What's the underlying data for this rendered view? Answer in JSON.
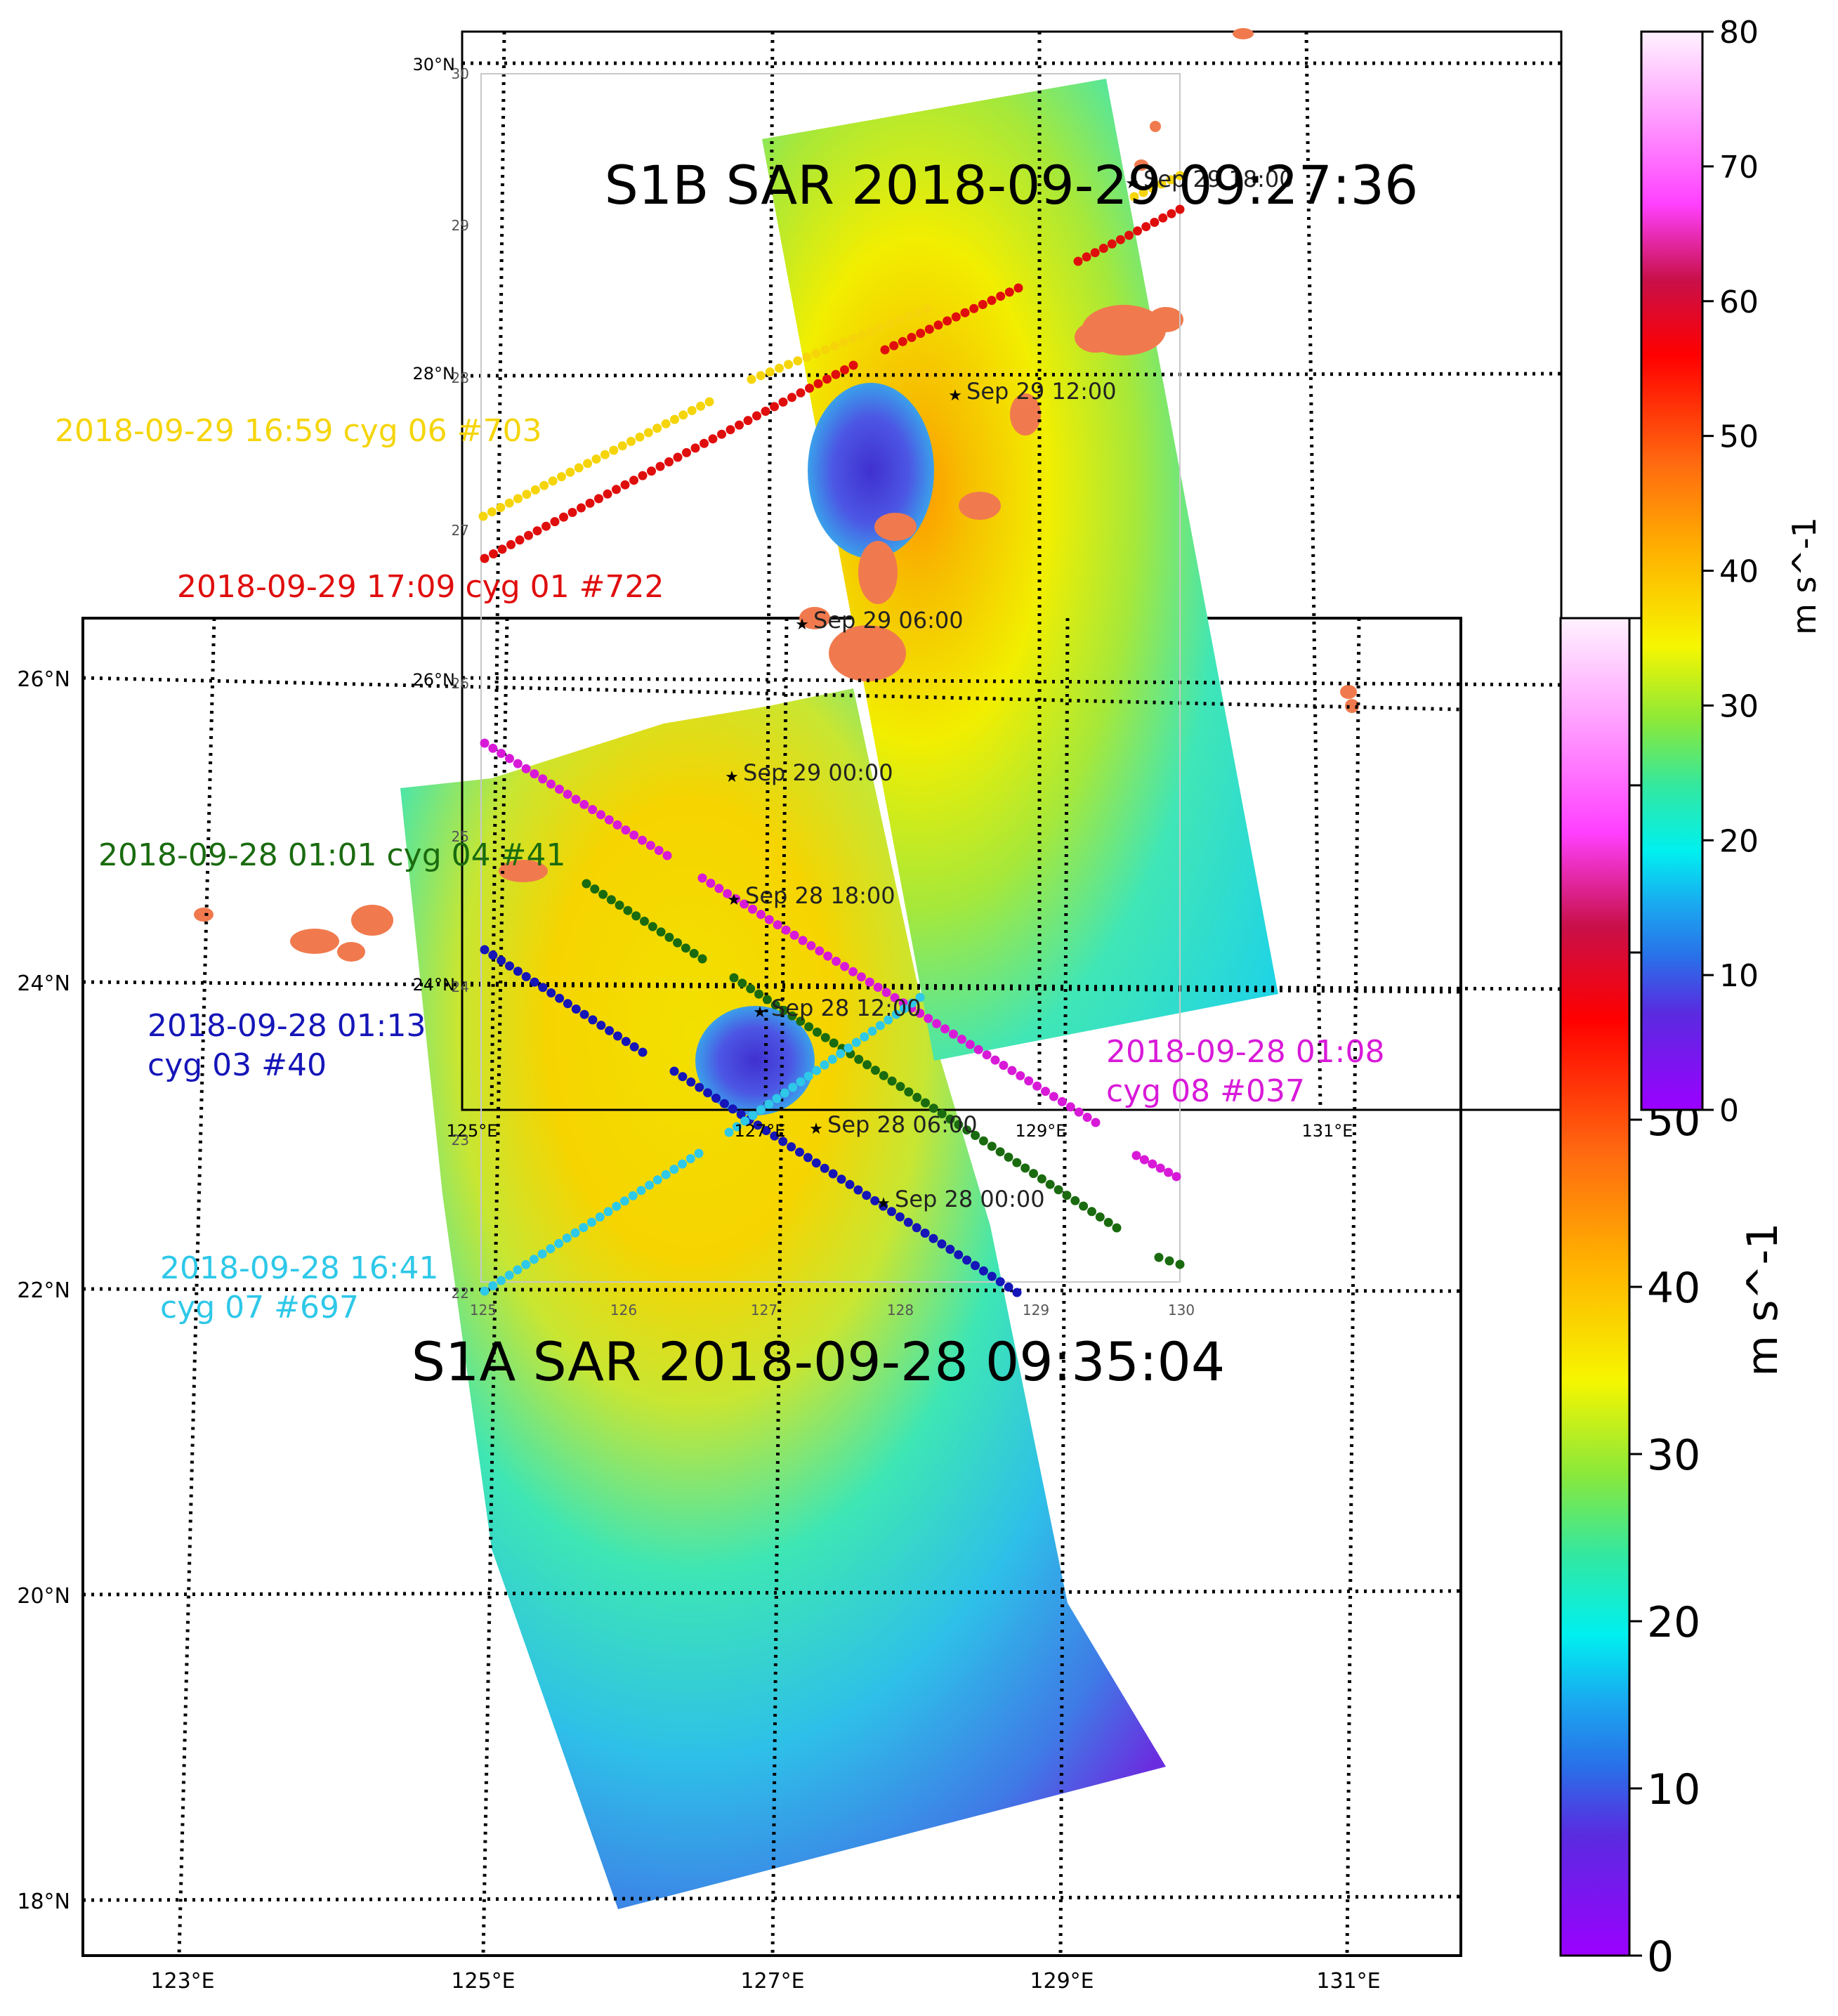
{
  "figure": {
    "lower_panel": {
      "title": "S1A SAR 2018-09-28 09:35:04",
      "lat_labels": [
        "26°N",
        "24°N",
        "22°N",
        "20°N",
        "18°N"
      ],
      "lon_labels": [
        "123°E",
        "125°E",
        "127°E",
        "129°E",
        "131°E"
      ],
      "colorbar": {
        "label": "m s^-1",
        "ticks": [
          "0",
          "10",
          "20",
          "30",
          "40",
          "50",
          "60",
          "70",
          "80"
        ],
        "range": [
          0,
          80
        ]
      }
    },
    "upper_panel": {
      "title": "S1B SAR 2018-09-29 09:27:36",
      "lat_labels": [
        "30°N",
        "28°N",
        "26°N",
        "24°N"
      ],
      "lon_labels": [
        "125°E",
        "127°E",
        "129°E",
        "131°E"
      ],
      "colorbar": {
        "label": "m s^-1",
        "ticks": [
          "0",
          "10",
          "20",
          "30",
          "40",
          "50",
          "60",
          "70",
          "80"
        ],
        "range": [
          0,
          80
        ]
      }
    },
    "inner_grid": {
      "x_ticks": [
        "125",
        "126",
        "127",
        "128",
        "129",
        "130"
      ],
      "y_ticks": [
        "30",
        "29",
        "28",
        "27",
        "26",
        "25",
        "24",
        "23",
        "22"
      ]
    },
    "track_points": [
      {
        "label": "Sep 29  06:00"
      },
      {
        "label": "Sep 29  12:00"
      },
      {
        "label": "Sep 29  00:00"
      },
      {
        "label": "Sep 28  18:00"
      },
      {
        "label": "Sep 28  12:00"
      },
      {
        "label": "Sep 28  06:00"
      },
      {
        "label": "Sep 28  00:00"
      },
      {
        "label": "Sep 29  18:00"
      }
    ],
    "cyg_tracks": [
      {
        "label": "2018-09-29 16:59 cyg 06 #703",
        "color": "#f5d50a"
      },
      {
        "label": "2018-09-29 17:09 cyg 01 #722",
        "color": "#e00d0d"
      },
      {
        "label": "2018-09-28 01:01 cyg 04 #41",
        "color": "#1a6b0f"
      },
      {
        "label": "2018-09-28 01:13 cyg 03 #40",
        "color": "#1515b8"
      },
      {
        "label": "2018-09-28 01:08 cyg 08 #037",
        "color": "#d81ad8"
      },
      {
        "label": "2018-09-28 16:41 cyg 07 #697",
        "color": "#2ec8e8"
      }
    ],
    "land_color": "#f07a4e"
  }
}
